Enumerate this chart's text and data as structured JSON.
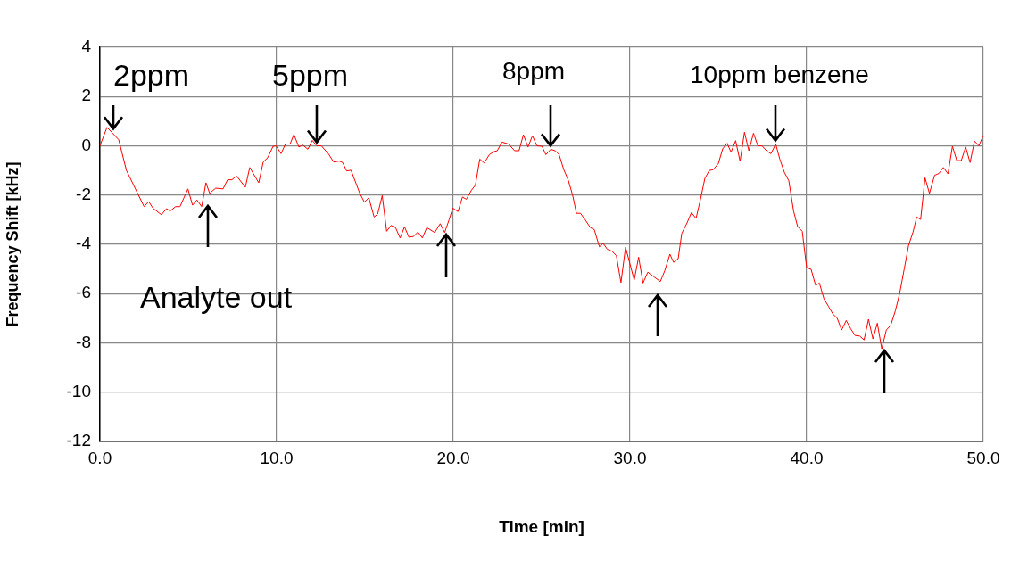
{
  "chart_data": {
    "type": "line",
    "xlabel": "Time [min]",
    "ylabel": "Frequency Shift [kHz]",
    "xlim": [
      0,
      50
    ],
    "xticks": [
      {
        "value": 0,
        "label": "0.0"
      },
      {
        "value": 10,
        "label": "10.0"
      },
      {
        "value": 20,
        "label": "20.0"
      },
      {
        "value": 30,
        "label": "30.0"
      },
      {
        "value": 40,
        "label": "40.0"
      },
      {
        "value": 50,
        "label": "50.0"
      }
    ],
    "ylim": [
      -12,
      4
    ],
    "yticks": [
      -12,
      -10,
      -8,
      -6,
      -4,
      -2,
      0,
      2,
      4
    ],
    "grid": true,
    "annotations": [
      {
        "text": "2ppm",
        "x": 0.76,
        "y": 0.55
      },
      {
        "text": "5ppm",
        "x": 12.27,
        "y": 0
      },
      {
        "text": "8ppm",
        "x": 25.52,
        "y": -0.14
      },
      {
        "text": "10ppm benzene",
        "x": 38.25,
        "y": 0.07
      },
      "Analyte out"
    ],
    "series": [
      {
        "color": "#ff0000",
        "x": [
          0,
          0.4,
          1.06,
          1.5,
          2.5,
          2.76,
          3.0,
          3.48,
          3.77,
          3.97,
          4.28,
          4.53,
          4.98,
          5.24,
          5.49,
          5.76,
          6.0,
          6.21,
          6.55,
          6.97,
          7.22,
          7.47,
          7.73,
          8.23,
          8.48,
          8.99,
          9.24,
          9.5,
          9.8,
          9.97,
          10.25,
          10.5,
          10.76,
          10.98,
          11.26,
          11.48,
          11.77,
          12.02,
          12.27,
          12.53,
          12.94,
          13.23,
          13.54,
          13.74,
          13.96,
          14.21,
          14.71,
          14.97,
          15.22,
          15.52,
          15.72,
          15.98,
          16.23,
          16.48,
          16.73,
          16.99,
          17.24,
          17.49,
          17.74,
          18.0,
          18.25,
          18.5,
          18.95,
          19.26,
          19.51,
          19.76,
          19.97,
          20.27,
          20.52,
          20.74,
          21.03,
          21.25,
          21.5,
          21.75,
          22.04,
          22.29,
          22.49,
          22.76,
          23.13,
          23.47,
          23.72,
          23.97,
          24.23,
          24.48,
          24.73,
          25.02,
          25.24,
          25.52,
          25.79,
          25.99,
          26.25,
          26.5,
          26.75,
          26.97,
          27.2,
          27.47,
          27.76,
          27.98,
          28.27,
          28.48,
          28.72,
          28.99,
          29.23,
          29.49,
          29.75,
          30.24,
          30.49,
          30.74,
          31.01,
          31.38,
          31.72,
          31.97,
          32.26,
          32.47,
          32.73,
          32.93,
          33.23,
          33.48,
          33.74,
          33.99,
          34.24,
          34.49,
          34.71,
          35.0,
          35.25,
          35.5,
          35.72,
          35.98,
          36.23,
          36.48,
          36.73,
          36.99,
          37.24,
          37.47,
          37.74,
          37.98,
          38.25,
          38.48,
          38.74,
          38.99,
          39.26,
          39.49,
          39.75,
          40.0,
          40.25,
          40.51,
          40.72,
          40.98,
          41.23,
          41.48,
          41.73,
          41.98,
          42.24,
          42.49,
          42.74,
          43.0,
          43.25,
          43.5,
          43.75,
          44.0,
          44.25,
          44.51,
          44.76,
          45.02,
          45.27,
          45.52,
          45.77,
          46.02,
          46.23,
          46.45,
          46.7,
          46.95,
          47.24,
          47.49,
          47.74,
          48.0,
          48.25,
          48.5,
          48.75,
          49.0,
          49.25,
          49.5,
          49.75,
          50.0
        ],
        "values": [
          0,
          0.75,
          0.25,
          -1.0,
          -2.47,
          -2.26,
          -2.53,
          -2.8,
          -2.55,
          -2.65,
          -2.47,
          -2.47,
          -1.75,
          -2.41,
          -2.2,
          -2.47,
          -1.5,
          -1.93,
          -1.72,
          -1.75,
          -1.38,
          -1.38,
          -1.22,
          -1.68,
          -0.88,
          -1.5,
          -0.66,
          -0.48,
          -0.02,
          0,
          -0.32,
          0.07,
          0.07,
          0.46,
          -0.05,
          0.03,
          -0.14,
          0.22,
          0,
          0,
          -0.33,
          -0.66,
          -0.62,
          -0.68,
          -1.02,
          -0.99,
          -1.93,
          -2.29,
          -2.11,
          -2.89,
          -2.77,
          -2.02,
          -3.47,
          -3.23,
          -3.32,
          -3.74,
          -3.29,
          -3.71,
          -3.68,
          -3.5,
          -3.74,
          -3.32,
          -3.52,
          -3.16,
          -3.52,
          -3.01,
          -2.53,
          -2.67,
          -2.08,
          -2.17,
          -1.8,
          -1.6,
          -0.54,
          -0.7,
          -0.36,
          -0.24,
          -0.2,
          0.15,
          0.07,
          -0.2,
          -0.2,
          0.45,
          -0.05,
          0.41,
          0,
          -0.02,
          -0.36,
          -0.14,
          -0.21,
          -0.36,
          -0.96,
          -1.38,
          -1.99,
          -2.74,
          -2.74,
          -3.01,
          -3.32,
          -3.4,
          -4.1,
          -3.96,
          -4.2,
          -4.28,
          -4.46,
          -5.55,
          -4.12,
          -5.45,
          -4.52,
          -5.57,
          -5.13,
          -5.33,
          -5.51,
          -5.07,
          -4.4,
          -4.73,
          -4.58,
          -3.56,
          -3.13,
          -2.71,
          -2.95,
          -2.17,
          -1.32,
          -1.0,
          -0.97,
          -0.72,
          -0.12,
          0.1,
          -0.26,
          0.21,
          -0.63,
          0.55,
          -0.2,
          0.51,
          0,
          0,
          -0.21,
          -0.32,
          0.07,
          -0.54,
          -1.08,
          -1.42,
          -2.65,
          -3.28,
          -3.47,
          -4.95,
          -5.01,
          -5.67,
          -5.57,
          -6.21,
          -6.51,
          -6.82,
          -7.0,
          -7.48,
          -7.09,
          -7.42,
          -7.7,
          -7.72,
          -7.88,
          -7.04,
          -7.84,
          -7.2,
          -8.24,
          -7.48,
          -7.28,
          -6.7,
          -5.97,
          -5.01,
          -4.04,
          -3.5,
          -2.89,
          -2.99,
          -1.3,
          -1.93,
          -1.2,
          -1.12,
          -0.88,
          -1.14,
          -0.02,
          -0.6,
          -0.6,
          -0.05,
          -0.68,
          0.19,
          0,
          0.43
        ]
      }
    ]
  }
}
